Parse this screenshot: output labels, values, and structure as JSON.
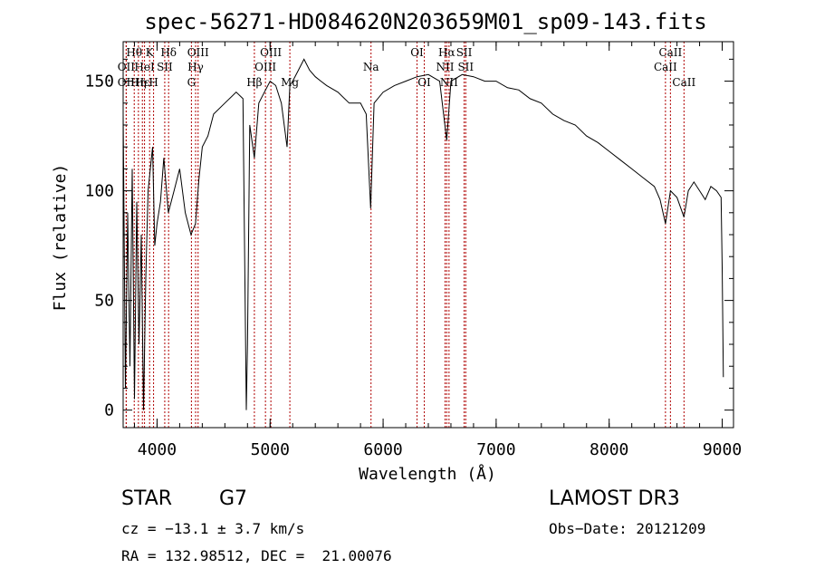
{
  "chart_data": {
    "type": "line",
    "title": "spec-56271-HD084620N203659M01_sp09-143.fits",
    "xlabel": "Wavelength (Å)",
    "ylabel": "Flux (relative)",
    "xlim": [
      3700,
      9100
    ],
    "ylim": [
      -8,
      168
    ],
    "x_ticks": [
      4000,
      5000,
      6000,
      7000,
      8000,
      9000
    ],
    "x_tick_labels": [
      "4000",
      "5000",
      "6000",
      "7000",
      "8000",
      "9000"
    ],
    "y_ticks": [
      0,
      50,
      100,
      150
    ],
    "y_tick_labels": [
      "0",
      "50",
      "100",
      "150"
    ],
    "grid": false,
    "series": [
      {
        "name": "flux",
        "x": [
          3700,
          3720,
          3740,
          3760,
          3780,
          3800,
          3820,
          3840,
          3860,
          3880,
          3900,
          3920,
          3940,
          3960,
          3980,
          4000,
          4030,
          4060,
          4100,
          4150,
          4200,
          4250,
          4300,
          4340,
          4370,
          4400,
          4450,
          4500,
          4600,
          4700,
          4760,
          4790,
          4800,
          4820,
          4861,
          4900,
          4950,
          5000,
          5050,
          5100,
          5150,
          5175,
          5200,
          5250,
          5300,
          5350,
          5400,
          5450,
          5500,
          5600,
          5700,
          5800,
          5850,
          5890,
          5920,
          6000,
          6100,
          6200,
          6300,
          6400,
          6500,
          6563,
          6600,
          6700,
          6800,
          6900,
          7000,
          7100,
          7200,
          7300,
          7400,
          7500,
          7600,
          7700,
          7800,
          7900,
          8000,
          8100,
          8200,
          8300,
          8400,
          8450,
          8498,
          8542,
          8600,
          8662,
          8700,
          8750,
          8800,
          8850,
          8900,
          8950,
          8990,
          9000,
          9010
        ],
        "y": [
          135,
          10,
          90,
          20,
          110,
          5,
          95,
          30,
          80,
          0,
          60,
          100,
          110,
          120,
          75,
          85,
          95,
          115,
          90,
          100,
          110,
          90,
          80,
          85,
          105,
          120,
          125,
          135,
          140,
          145,
          142,
          0,
          30,
          130,
          115,
          140,
          145,
          150,
          148,
          140,
          120,
          148,
          150,
          155,
          160,
          155,
          152,
          150,
          148,
          145,
          140,
          140,
          135,
          92,
          140,
          145,
          148,
          150,
          152,
          153,
          150,
          123,
          150,
          153,
          152,
          150,
          150,
          147,
          146,
          142,
          140,
          135,
          132,
          130,
          125,
          122,
          118,
          114,
          110,
          106,
          102,
          96,
          85,
          100,
          97,
          88,
          100,
          104,
          100,
          96,
          102,
          100,
          97,
          65,
          15
        ]
      }
    ],
    "lines": [
      {
        "label": "Hθ",
        "x": 3798,
        "row": 0
      },
      {
        "label": "OII",
        "x": 3727,
        "row": 1
      },
      {
        "label": "OII",
        "x": 3727,
        "row": 2
      },
      {
        "label": "Hη",
        "x": 3835,
        "row": 2
      },
      {
        "label": "Hε",
        "x": 3870,
        "row": 2
      },
      {
        "label": "K",
        "x": 3934,
        "row": 0
      },
      {
        "label": "HeI",
        "x": 3889,
        "row": 1
      },
      {
        "label": "H",
        "x": 3969,
        "row": 2
      },
      {
        "label": "Hδ",
        "x": 4102,
        "row": 0
      },
      {
        "label": "SII",
        "x": 4068,
        "row": 1
      },
      {
        "label": "OIII",
        "x": 4363,
        "row": 0
      },
      {
        "label": "Hγ",
        "x": 4341,
        "row": 1
      },
      {
        "label": "G",
        "x": 4304,
        "row": 2
      },
      {
        "label": "OIII",
        "x": 5007,
        "row": 0
      },
      {
        "label": "OIII",
        "x": 4959,
        "row": 1
      },
      {
        "label": "Hβ",
        "x": 4861,
        "row": 2
      },
      {
        "label": "Mg",
        "x": 5175,
        "row": 2
      },
      {
        "label": "Na",
        "x": 5893,
        "row": 1
      },
      {
        "label": "OI",
        "x": 6300,
        "row": 0
      },
      {
        "label": "OI",
        "x": 6364,
        "row": 2
      },
      {
        "label": "Hα",
        "x": 6563,
        "row": 0
      },
      {
        "label": "SII",
        "x": 6717,
        "row": 0
      },
      {
        "label": "NII",
        "x": 6548,
        "row": 1
      },
      {
        "label": "SII",
        "x": 6731,
        "row": 1
      },
      {
        "label": "NII",
        "x": 6583,
        "row": 2
      },
      {
        "label": "CaII",
        "x": 8542,
        "row": 0
      },
      {
        "label": "CaII",
        "x": 8498,
        "row": 1
      },
      {
        "label": "CaII",
        "x": 8662,
        "row": 2
      }
    ]
  },
  "info": {
    "object_type": "STAR",
    "subclass": "G7",
    "survey": "LAMOST DR3",
    "cz": "cz = −13.1 ± 3.7 km/s",
    "obs_date": "Obs−Date: 20121209",
    "coords": "RA = 132.98512, DEC =  21.00076"
  }
}
